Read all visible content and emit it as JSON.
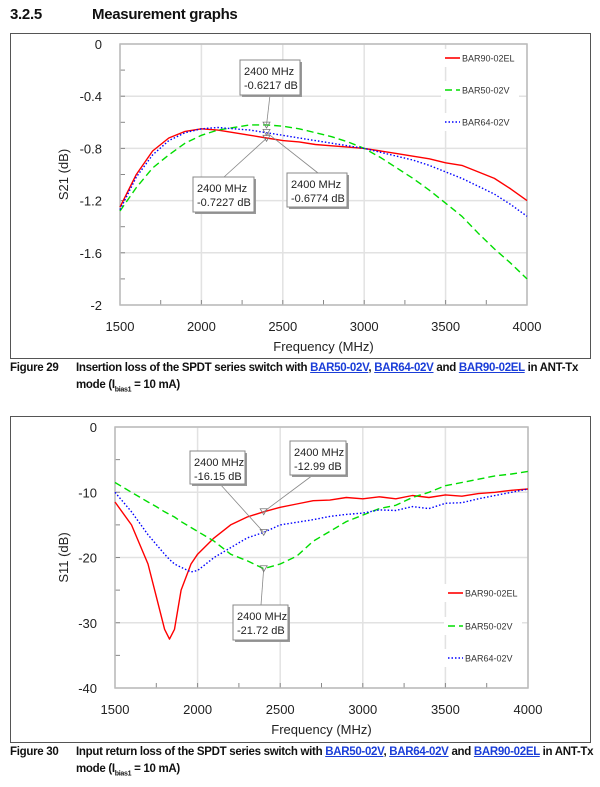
{
  "section": {
    "number": "3.2.5",
    "title": "Measurement graphs"
  },
  "figures": [
    {
      "label": "Figure 29",
      "caption": {
        "pre": "Insertion loss of the SPDT series switch with ",
        "link1": "BAR50-02V",
        "sep1": ", ",
        "link2": "BAR64-02V",
        "sep2": " and ",
        "link3": "BAR90-02EL",
        "post": " in ANT-Tx mode (I",
        "sub": "bias1",
        "end": " = 10 mA)"
      }
    },
    {
      "label": "Figure 30",
      "caption": {
        "pre": "Input return loss of the SPDT series switch with ",
        "link1": "BAR50-02V",
        "sep1": ", ",
        "link2": "BAR64-02V",
        "sep2": " and ",
        "link3": "BAR90-02EL",
        "post": " in ANT-Tx mode (I",
        "sub": "bias1",
        "end": " = 10 mA)"
      }
    }
  ],
  "chart_data": [
    {
      "type": "line",
      "xlabel": "Frequency (MHz)",
      "ylabel": "S21 (dB)",
      "xlim": [
        1500,
        4000
      ],
      "ylim": [
        -2,
        0
      ],
      "xticks": [
        "1500",
        "2000",
        "2500",
        "3000",
        "3500",
        "4000"
      ],
      "yticks": [
        "0",
        "-0.4",
        "-0.8",
        "-1.2",
        "-1.6",
        "-2"
      ],
      "grid": true,
      "legend_position": "top-right",
      "x": [
        1500,
        1600,
        1700,
        1800,
        1900,
        2000,
        2100,
        2200,
        2300,
        2400,
        2500,
        2600,
        2700,
        2800,
        2900,
        3000,
        3100,
        3200,
        3300,
        3400,
        3500,
        3600,
        3700,
        3800,
        3900,
        4000
      ],
      "series": [
        {
          "name": "BAR90-02EL",
          "color": "#ff0000",
          "style": "solid",
          "values": [
            -1.25,
            -1.0,
            -0.82,
            -0.72,
            -0.67,
            -0.65,
            -0.66,
            -0.68,
            -0.7,
            -0.72,
            -0.74,
            -0.75,
            -0.77,
            -0.78,
            -0.79,
            -0.8,
            -0.82,
            -0.84,
            -0.86,
            -0.88,
            -0.91,
            -0.93,
            -0.98,
            -1.03,
            -1.11,
            -1.2
          ]
        },
        {
          "name": "BAR50-02V",
          "color": "#00dd00",
          "style": "dashed",
          "values": [
            -1.28,
            -1.1,
            -0.95,
            -0.85,
            -0.76,
            -0.7,
            -0.66,
            -0.64,
            -0.62,
            -0.62,
            -0.63,
            -0.65,
            -0.68,
            -0.71,
            -0.75,
            -0.8,
            -0.87,
            -0.95,
            -1.03,
            -1.12,
            -1.22,
            -1.32,
            -1.45,
            -1.57,
            -1.68,
            -1.8
          ]
        },
        {
          "name": "BAR64-02V",
          "color": "#0000ff",
          "style": "dotted",
          "values": [
            -1.27,
            -1.02,
            -0.85,
            -0.74,
            -0.68,
            -0.65,
            -0.64,
            -0.65,
            -0.66,
            -0.68,
            -0.7,
            -0.72,
            -0.74,
            -0.76,
            -0.78,
            -0.8,
            -0.83,
            -0.86,
            -0.89,
            -0.93,
            -0.98,
            -1.03,
            -1.09,
            -1.15,
            -1.23,
            -1.32
          ]
        }
      ],
      "annotations": [
        {
          "x": 2400,
          "y": -0.6217,
          "line1": "2400 MHz",
          "line2": "-0.6217 dB"
        },
        {
          "x": 2400,
          "y": -0.7227,
          "line1": "2400 MHz",
          "line2": "-0.7227 dB"
        },
        {
          "x": 2400,
          "y": -0.6774,
          "line1": "2400 MHz",
          "line2": "-0.6774 dB"
        }
      ]
    },
    {
      "type": "line",
      "xlabel": "Frequency (MHz)",
      "ylabel": "S11 (dB)",
      "xlim": [
        1500,
        4000
      ],
      "ylim": [
        -40,
        0
      ],
      "xticks": [
        "1500",
        "2000",
        "2500",
        "3000",
        "3500",
        "4000"
      ],
      "yticks": [
        "0",
        "-10",
        "-20",
        "-30",
        "-40"
      ],
      "grid": true,
      "legend_position": "bottom-right",
      "x": [
        1500,
        1600,
        1700,
        1750,
        1800,
        1830,
        1860,
        1900,
        1960,
        2000,
        2100,
        2200,
        2300,
        2400,
        2500,
        2600,
        2700,
        2800,
        2900,
        3000,
        3100,
        3200,
        3300,
        3400,
        3500,
        3600,
        3700,
        3800,
        3900,
        4000
      ],
      "series": [
        {
          "name": "BAR90-02EL",
          "color": "#ff0000",
          "style": "solid",
          "values": [
            -11.5,
            -15,
            -21,
            -26,
            -31,
            -32.5,
            -31,
            -25,
            -21,
            -19.5,
            -17,
            -15,
            -13.8,
            -12.99,
            -12.3,
            -11.8,
            -11.3,
            -11.2,
            -10.8,
            -11,
            -10.7,
            -11,
            -10.5,
            -10.8,
            -10.4,
            -10.6,
            -10.2,
            -10,
            -9.7,
            -9.5
          ]
        },
        {
          "name": "BAR50-02V",
          "color": "#00dd00",
          "style": "dashed",
          "values": [
            -8.5,
            -10,
            -11.5,
            -12.2,
            -13,
            -13.4,
            -13.8,
            -14.5,
            -15.4,
            -16,
            -17.5,
            -19.5,
            -20.5,
            -21.72,
            -21,
            -19.8,
            -17.5,
            -16,
            -14.5,
            -13.5,
            -12.5,
            -12,
            -10.8,
            -10,
            -9,
            -8.5,
            -8,
            -7.5,
            -7.2,
            -6.8
          ]
        },
        {
          "name": "BAR64-02V",
          "color": "#0000ff",
          "style": "dotted",
          "values": [
            -10,
            -13,
            -16.5,
            -18,
            -19.5,
            -20.3,
            -21,
            -21.5,
            -22.2,
            -22,
            -20,
            -18.5,
            -17,
            -16.15,
            -15,
            -14.6,
            -14.2,
            -13.7,
            -13.4,
            -13.2,
            -12.7,
            -12.8,
            -12.2,
            -12.5,
            -11.7,
            -11.6,
            -11,
            -10.5,
            -10,
            -9.5
          ]
        }
      ],
      "annotations": [
        {
          "x": 2400,
          "y": -16.15,
          "line1": "2400 MHz",
          "line2": "-16.15 dB"
        },
        {
          "x": 2400,
          "y": -12.99,
          "line1": "2400 MHz",
          "line2": "-12.99 dB"
        },
        {
          "x": 2400,
          "y": -21.72,
          "line1": "2400 MHz",
          "line2": "-21.72 dB"
        }
      ]
    }
  ]
}
